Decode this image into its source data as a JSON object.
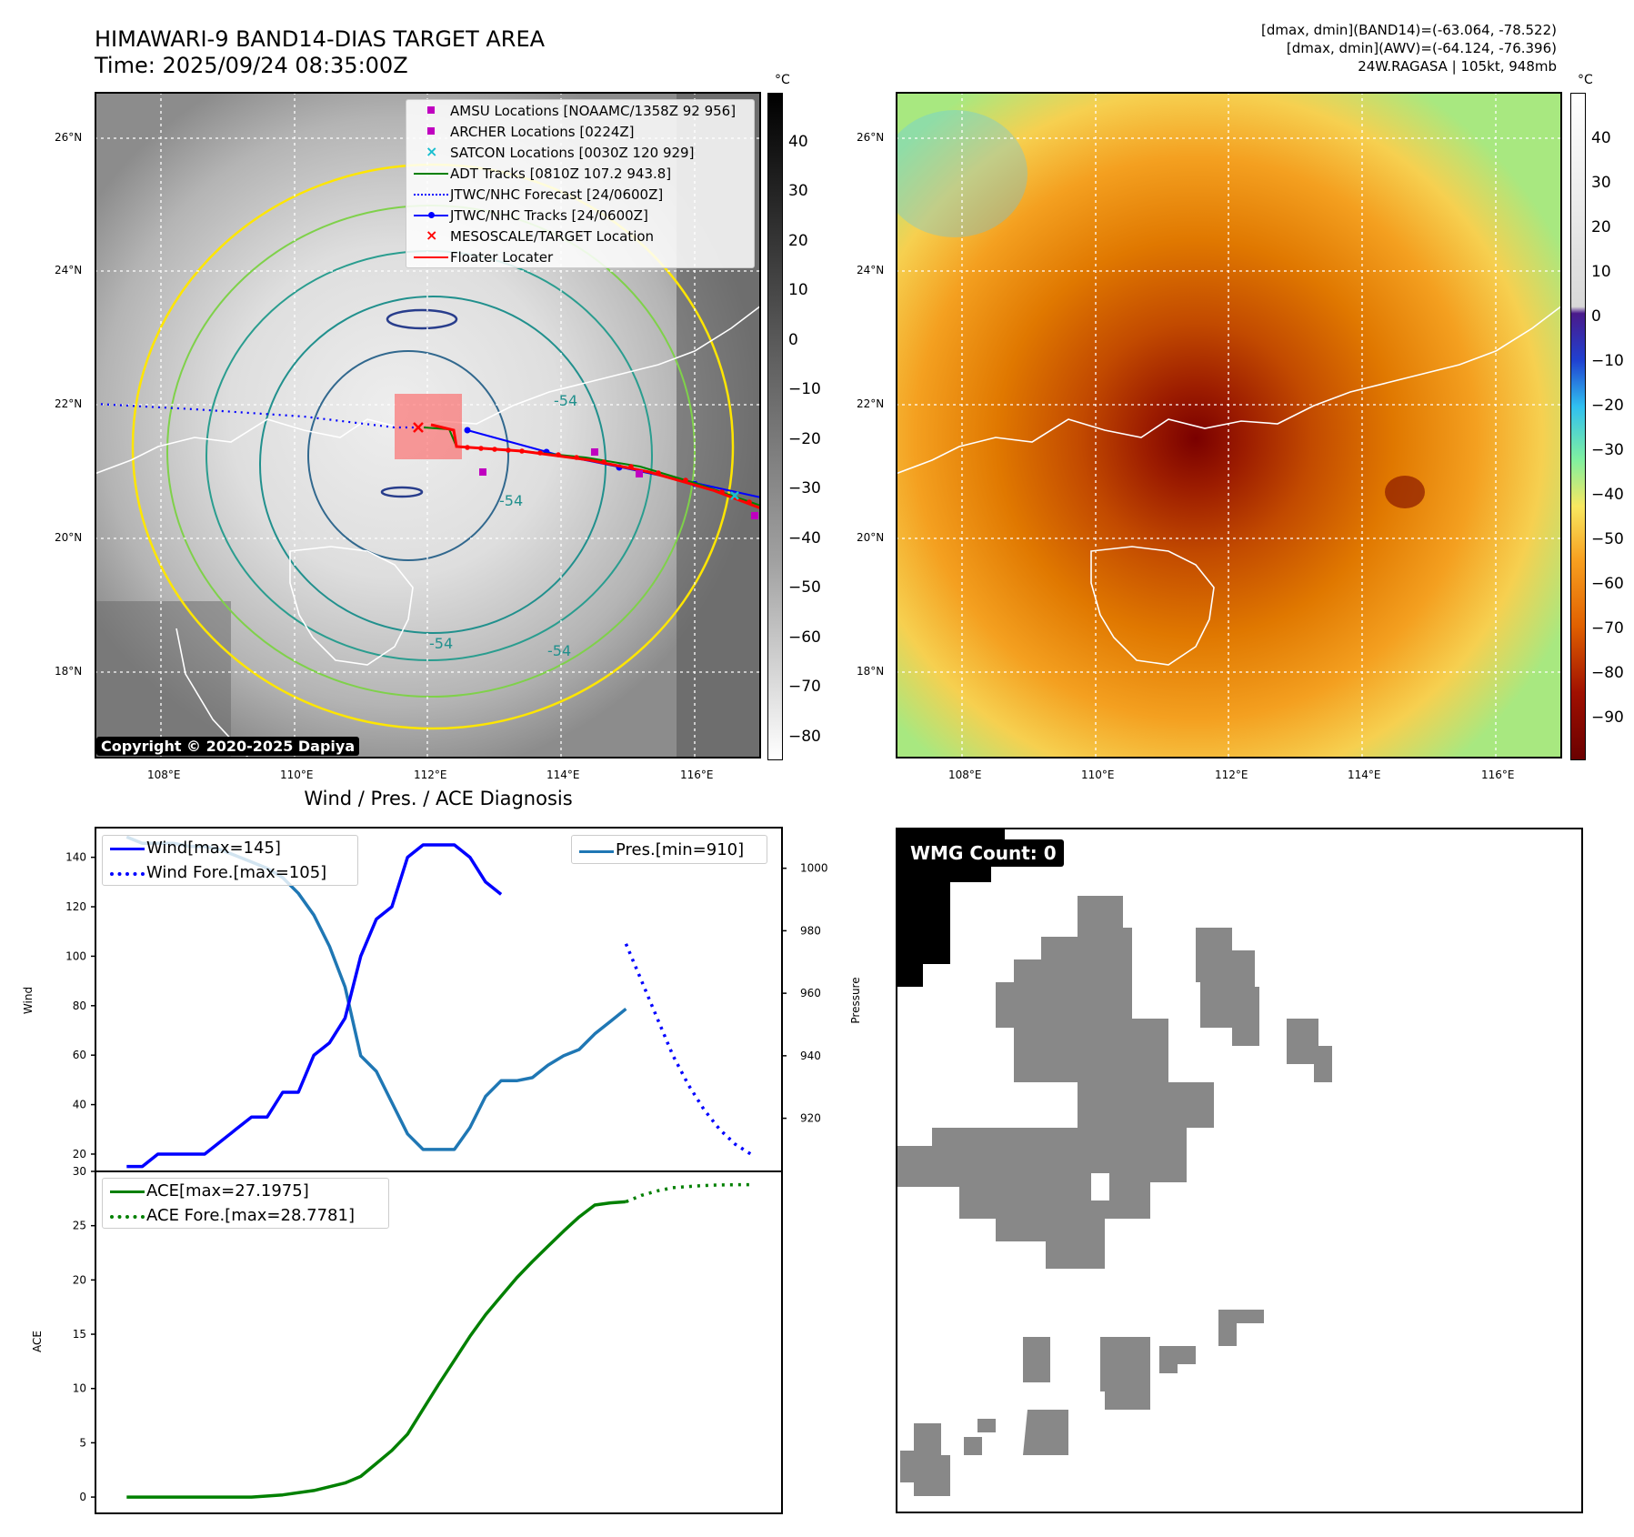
{
  "header": {
    "title_line1": "HIMAWARI-9 BAND14-DIAS TARGET AREA",
    "title_line2": "Time: 2025/09/24 08:35:00Z",
    "info_line1": "[dmax, dmin](BAND14)=(-63.064, -78.522)",
    "info_line2": "[dmax, dmin](AWV)=(-64.124, -76.396)",
    "info_line3": "24W.RAGASA | 105kt, 948mb"
  },
  "map_left": {
    "lat_labels": [
      "26°N",
      "24°N",
      "22°N",
      "20°N",
      "18°N"
    ],
    "lon_labels": [
      "108°E",
      "110°E",
      "112°E",
      "114°E",
      "116°E"
    ],
    "copyright": "Copyright © 2020-2025 Dapiya",
    "legend": [
      {
        "label": "AMSU Locations [NOAAMC/1358Z 92 956]",
        "color": "#c000c0",
        "marker": "square"
      },
      {
        "label": "ARCHER Locations [0224Z]",
        "color": "#c000c0",
        "marker": "square"
      },
      {
        "label": "SATCON Locations [0030Z 120 929]",
        "color": "#17becf",
        "marker": "x"
      },
      {
        "label": "ADT Tracks [0810Z 107.2 943.8]",
        "color": "#008000",
        "marker": "line"
      },
      {
        "label": "JTWC/NHC Forecast [24/0600Z]",
        "color": "#0000ff",
        "marker": "dotted"
      },
      {
        "label": "JTWC/NHC Tracks [24/0600Z]",
        "color": "#0000ff",
        "marker": "line-dot"
      },
      {
        "label": "MESOSCALE/TARGET Location",
        "color": "#ff0000",
        "marker": "x"
      },
      {
        "label": "Floater Locater",
        "color": "#ff0000",
        "marker": "line"
      }
    ],
    "contour_labels": [
      "-54",
      "-54",
      "-54",
      "-54"
    ],
    "colorbar": {
      "unit": "°C",
      "ticks": [
        "40",
        "30",
        "20",
        "10",
        "0",
        "−10",
        "−20",
        "−30",
        "−40",
        "−50",
        "−60",
        "−70",
        "−80"
      ]
    }
  },
  "map_right": {
    "lat_labels": [
      "26°N",
      "24°N",
      "22°N",
      "20°N",
      "18°N"
    ],
    "lon_labels": [
      "108°E",
      "110°E",
      "112°E",
      "114°E",
      "116°E"
    ],
    "colorbar": {
      "unit": "°C",
      "ticks": [
        "40",
        "30",
        "20",
        "10",
        "0",
        "−10",
        "−20",
        "−30",
        "−40",
        "−50",
        "−60",
        "−70",
        "−80",
        "−90"
      ]
    }
  },
  "diag_title": "Wind / Pres. / ACE Diagnosis",
  "wmg": {
    "label": "WMG Count: 0"
  },
  "colors": {
    "wind": "#0000ff",
    "pres": "#1f77b4",
    "ace": "#008000",
    "floater": "#ff0000"
  },
  "chart_data": [
    {
      "type": "line",
      "title": "Wind / Pres. / ACE Diagnosis",
      "ylabel": "Wind",
      "y2label": "Pressure",
      "ylim": [
        13,
        152
      ],
      "y2lim": [
        903,
        1013
      ],
      "yticks": [
        20,
        40,
        60,
        80,
        100,
        120,
        140
      ],
      "y2ticks": [
        920,
        940,
        960,
        980,
        1000
      ],
      "series": [
        {
          "name": "Wind[max=145]",
          "axis": "left",
          "style": "solid",
          "x": [
            0,
            1,
            2,
            3,
            4,
            5,
            6,
            7,
            8,
            9,
            10,
            11,
            12,
            13,
            14,
            15,
            16,
            17,
            18,
            19,
            20,
            21,
            22,
            23,
            24
          ],
          "values": [
            15,
            15,
            20,
            20,
            20,
            20,
            25,
            30,
            35,
            35,
            45,
            45,
            60,
            65,
            75,
            100,
            115,
            120,
            140,
            145,
            145,
            145,
            140,
            130,
            125
          ]
        },
        {
          "name": "Wind Fore.[max=105]",
          "axis": "left",
          "style": "dotted",
          "x": [
            32,
            33,
            34,
            35,
            36,
            37,
            38,
            39,
            40
          ],
          "values": [
            105,
            90,
            75,
            60,
            48,
            38,
            30,
            24,
            20
          ]
        },
        {
          "name": "Pres.[min=910]",
          "axis": "right",
          "style": "solid",
          "x": [
            0,
            1,
            2,
            3,
            4,
            5,
            6,
            7,
            8,
            9,
            10,
            11,
            12,
            13,
            14,
            15,
            16,
            17,
            18,
            19,
            20,
            21,
            22,
            23,
            24,
            25,
            26,
            27,
            28,
            29,
            30,
            31,
            32
          ],
          "values": [
            1010,
            1008,
            1008,
            1008,
            1007,
            1007,
            1006,
            1004,
            1002,
            1000,
            997,
            992,
            985,
            975,
            962,
            940,
            935,
            925,
            915,
            910,
            910,
            910,
            917,
            927,
            932,
            932,
            933,
            937,
            940,
            942,
            947,
            951,
            955
          ]
        }
      ],
      "legend_left": [
        "Wind[max=145]",
        "Wind Fore.[max=105]"
      ],
      "legend_right": [
        "Pres.[min=910]"
      ]
    },
    {
      "type": "line",
      "ylabel": "ACE",
      "ylim": [
        -1.5,
        30
      ],
      "yticks": [
        0,
        5,
        10,
        15,
        20,
        25,
        30
      ],
      "series": [
        {
          "name": "ACE[max=27.1975]",
          "style": "solid",
          "x": [
            0,
            4,
            8,
            10,
            12,
            14,
            15,
            16,
            17,
            18,
            19,
            20,
            21,
            22,
            23,
            24,
            25,
            26,
            27,
            28,
            29,
            30,
            31,
            32
          ],
          "values": [
            0,
            0,
            0,
            0.2,
            0.6,
            1.3,
            1.9,
            3.1,
            4.3,
            5.8,
            8.1,
            10.4,
            12.6,
            14.8,
            16.8,
            18.5,
            20.2,
            21.7,
            23.1,
            24.5,
            25.8,
            26.9,
            27.1,
            27.2
          ]
        },
        {
          "name": "ACE Fore.[max=28.7781]",
          "style": "dotted",
          "x": [
            32,
            33,
            34,
            35,
            36,
            37,
            38,
            39,
            40
          ],
          "values": [
            27.2,
            27.8,
            28.2,
            28.5,
            28.6,
            28.7,
            28.75,
            28.77,
            28.78
          ]
        }
      ]
    }
  ]
}
